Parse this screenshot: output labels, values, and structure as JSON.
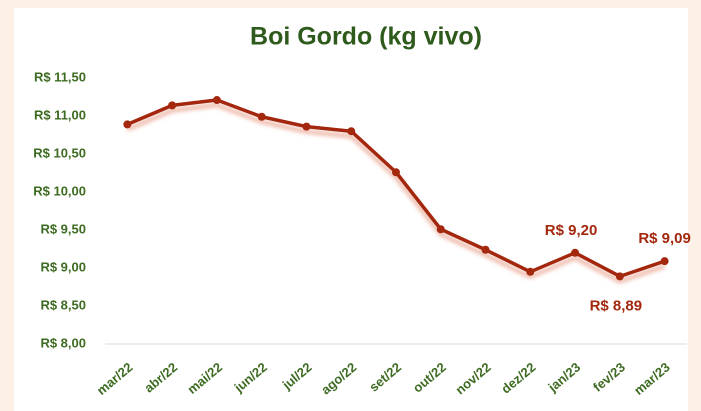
{
  "chart_data": {
    "type": "line",
    "title": "Boi Gordo (kg vivo)",
    "categories": [
      "mar/22",
      "abr/22",
      "mai/22",
      "jun/22",
      "jul/22",
      "ago/22",
      "set/22",
      "out/22",
      "nov/22",
      "dez/22",
      "jan/23",
      "fev/23",
      "mar/23"
    ],
    "series": [
      {
        "name": "Boi Gordo",
        "color": "#a3280e",
        "values": [
          10.89,
          11.14,
          11.21,
          10.99,
          10.86,
          10.8,
          10.26,
          9.51,
          9.24,
          8.95,
          9.2,
          8.89,
          9.09
        ],
        "value_labels": [
          null,
          null,
          null,
          null,
          null,
          null,
          null,
          null,
          null,
          null,
          "R$ 9,20",
          "R$ 8,89",
          "R$ 9,09"
        ]
      }
    ],
    "ylim": [
      8.0,
      11.5
    ],
    "yticks": [
      {
        "value": 8.0,
        "label": "R$ 8,00"
      },
      {
        "value": 8.5,
        "label": "R$ 8,50"
      },
      {
        "value": 9.0,
        "label": "R$ 9,00"
      },
      {
        "value": 9.5,
        "label": "R$ 9,50"
      },
      {
        "value": 10.0,
        "label": "R$ 10,00"
      },
      {
        "value": 10.5,
        "label": "R$ 10,50"
      },
      {
        "value": 11.0,
        "label": "R$ 11,00"
      },
      {
        "value": 11.5,
        "label": "R$ 11,50"
      }
    ]
  }
}
